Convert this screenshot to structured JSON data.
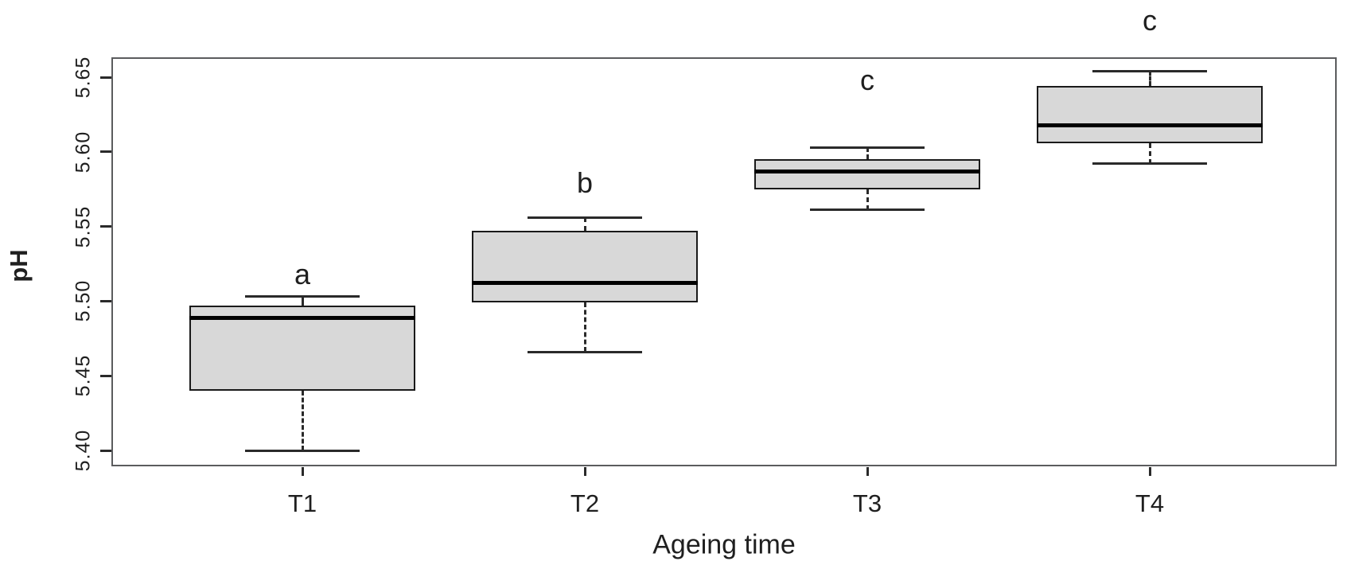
{
  "chart_data": {
    "type": "boxplot",
    "title": "",
    "xlabel": "Ageing time",
    "ylabel": "pH",
    "categories": [
      "T1",
      "T2",
      "T3",
      "T4"
    ],
    "y_ticks": [
      "5.40",
      "5.45",
      "5.50",
      "5.55",
      "5.60",
      "5.65"
    ],
    "ylim": [
      5.389,
      5.663
    ],
    "grid": false,
    "legend": "none",
    "groups": [
      {
        "category": "T1",
        "whisker_low": 5.4,
        "q1": 5.44,
        "median": 5.489,
        "q3": 5.497,
        "whisker_high": 5.503,
        "sig_letter": "a",
        "sig_letter_ph": 5.518
      },
      {
        "category": "T2",
        "whisker_low": 5.466,
        "q1": 5.499,
        "median": 5.512,
        "q3": 5.547,
        "whisker_high": 5.556,
        "sig_letter": "b",
        "sig_letter_ph": 5.579
      },
      {
        "category": "T3",
        "whisker_low": 5.561,
        "q1": 5.575,
        "median": 5.587,
        "q3": 5.595,
        "whisker_high": 5.603,
        "sig_letter": "c",
        "sig_letter_ph": 5.648
      },
      {
        "category": "T4",
        "whisker_low": 5.592,
        "q1": 5.606,
        "median": 5.618,
        "q3": 5.644,
        "whisker_high": 5.654,
        "sig_letter": "c",
        "sig_letter_ph": 5.688
      }
    ],
    "colors": {
      "box_fill": "#d8d8d8",
      "box_border": "#1a1a1a",
      "median": "#000000",
      "whisker": "#2a2a2a",
      "frame": "#5b5c5e",
      "text": "#1f1f1f",
      "background": "#ffffff"
    }
  }
}
